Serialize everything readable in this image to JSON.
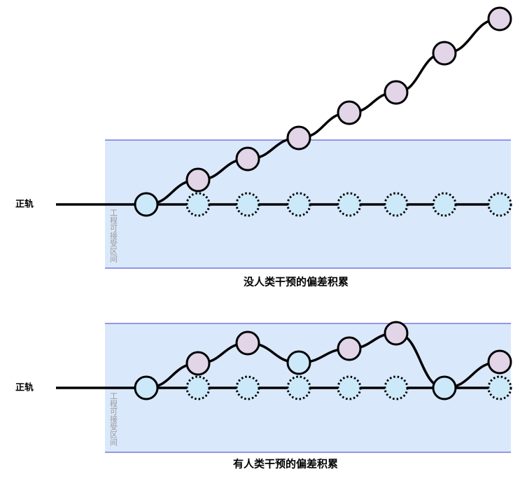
{
  "panels": [
    {
      "rail_label": "正轨",
      "zone_label": "工程可接受区间",
      "caption": "没人类干预的偏差积累"
    },
    {
      "rail_label": "正轨",
      "zone_label": "工程可接受区间",
      "caption": "有人类干预的偏差积累"
    }
  ]
}
